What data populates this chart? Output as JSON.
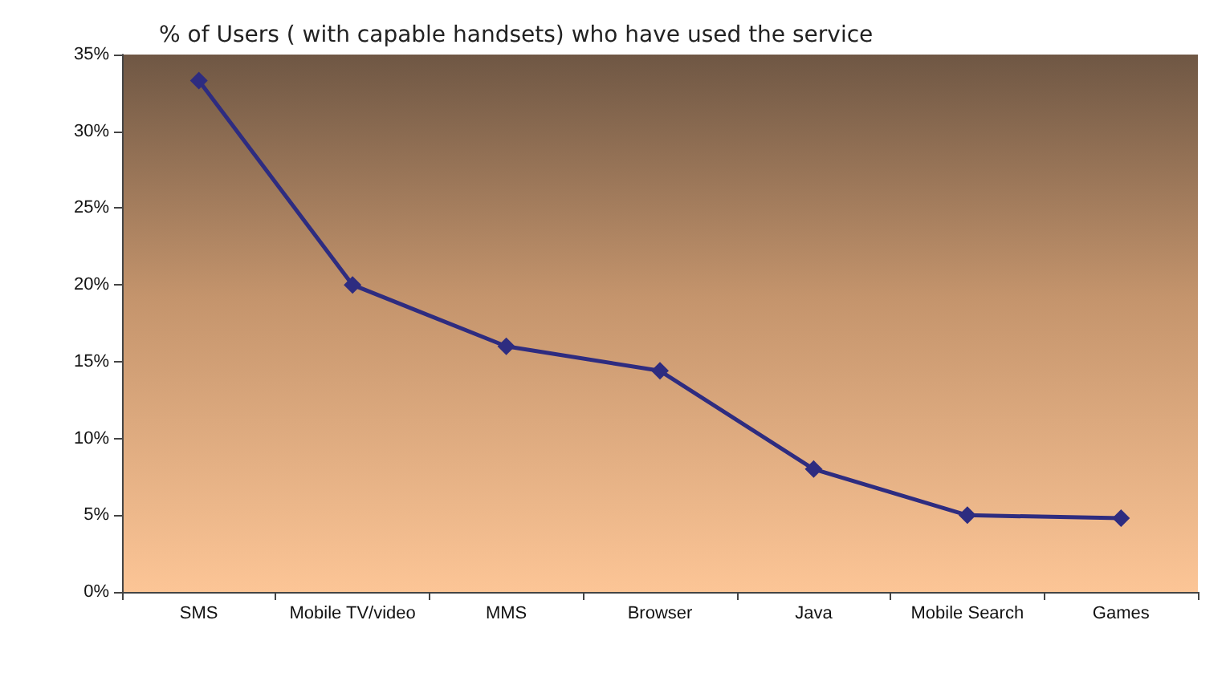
{
  "chart_data": {
    "type": "line",
    "title": "% of Users ( with capable handsets) who have used the service",
    "categories": [
      "SMS",
      "Mobile TV/video",
      "MMS",
      "Browser",
      "Java",
      "Mobile Search",
      "Games"
    ],
    "series": [
      {
        "color": "#2e2c80",
        "values": [
          33.3,
          20,
          16,
          14.4,
          8,
          5,
          4.8
        ]
      }
    ],
    "ylim": [
      0,
      35
    ],
    "yticks": [
      {
        "value": 0,
        "label": "0%"
      },
      {
        "value": 5,
        "label": "5%"
      },
      {
        "value": 10,
        "label": "10%"
      },
      {
        "value": 15,
        "label": "15%"
      },
      {
        "value": 20,
        "label": "20%"
      },
      {
        "value": 25,
        "label": "25%"
      },
      {
        "value": 30,
        "label": "30%"
      },
      {
        "value": 35,
        "label": "35%"
      }
    ],
    "grid": false,
    "marker": "diamond",
    "line_style": "solid"
  }
}
